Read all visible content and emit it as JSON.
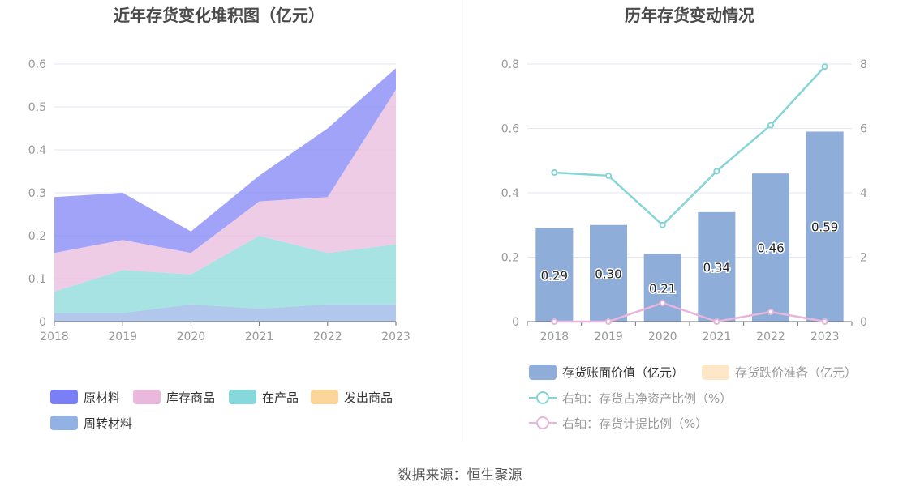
{
  "source_text": "数据来源：恒生聚源",
  "colors": {
    "raw_material": "#7b7ff5",
    "inventory_goods": "#e9b8dc",
    "wip": "#86d8da",
    "shipped_goods": "#fcd59a",
    "turnover_material": "#93b2e4",
    "bar": "#8eadd9",
    "impairment_bar": "#fde7c6",
    "ratio_line": "#86d4d8",
    "provision_line": "#e8b5dc",
    "grid": "#e4e7f2",
    "axis_text": "#999999",
    "title_text": "#4a4a4a"
  },
  "chart_data": [
    {
      "type": "area",
      "stacked": true,
      "title": "近年存货变化堆积图（亿元）",
      "x": [
        "2018",
        "2019",
        "2020",
        "2021",
        "2022",
        "2023"
      ],
      "yticks": [
        "0",
        "0.1",
        "0.2",
        "0.3",
        "0.4",
        "0.5",
        "0.6"
      ],
      "ylim": [
        0,
        0.6
      ],
      "grid": true,
      "legend_position": "bottom",
      "series": [
        {
          "name": "周转材料",
          "key": "turnover_material",
          "values": [
            0.02,
            0.02,
            0.04,
            0.03,
            0.04,
            0.04
          ]
        },
        {
          "name": "在产品",
          "key": "wip",
          "values": [
            0.05,
            0.1,
            0.07,
            0.17,
            0.12,
            0.14
          ]
        },
        {
          "name": "库存商品",
          "key": "inventory_goods",
          "values": [
            0.09,
            0.07,
            0.05,
            0.08,
            0.13,
            0.36
          ]
        },
        {
          "name": "原材料",
          "key": "raw_material",
          "values": [
            0.13,
            0.11,
            0.05,
            0.06,
            0.16,
            0.05
          ]
        },
        {
          "name": "发出商品",
          "key": "shipped_goods",
          "values": [
            0,
            0,
            0,
            0,
            0,
            0
          ]
        }
      ],
      "legend": [
        {
          "name": "原材料",
          "key": "raw_material"
        },
        {
          "name": "库存商品",
          "key": "inventory_goods"
        },
        {
          "name": "在产品",
          "key": "wip"
        },
        {
          "name": "发出商品",
          "key": "shipped_goods"
        },
        {
          "name": "周转材料",
          "key": "turnover_material"
        }
      ]
    },
    {
      "type": "bar",
      "title": "历年存货变动情况",
      "categories": [
        "2018",
        "2019",
        "2020",
        "2021",
        "2022",
        "2023"
      ],
      "ylim": [
        0,
        0.8
      ],
      "yticks_left": [
        "0",
        "0.2",
        "0.4",
        "0.6",
        "0.8"
      ],
      "y2lim": [
        0,
        8
      ],
      "yticks_right": [
        "0",
        "2",
        "4",
        "6",
        "8"
      ],
      "grid": true,
      "legend_position": "bottom",
      "series": [
        {
          "name": "存货账面价值（亿元）",
          "key": "bar",
          "type": "bar",
          "values": [
            0.29,
            0.3,
            0.21,
            0.34,
            0.46,
            0.59
          ],
          "labels": [
            "0.29",
            "0.30",
            "0.21",
            "0.34",
            "0.46",
            "0.59"
          ]
        },
        {
          "name": "存货跌价准备（亿元）",
          "key": "impairment_bar",
          "type": "bar",
          "values": [
            0,
            0,
            0,
            0,
            0,
            0
          ]
        },
        {
          "name": "右轴：存货占净资产比例（%）",
          "key": "ratio_line",
          "type": "line",
          "axis": "right",
          "values": [
            4.63,
            4.53,
            3.0,
            4.67,
            6.1,
            7.92
          ]
        },
        {
          "name": "右轴：存货计提比例（%）",
          "key": "provision_line",
          "type": "line",
          "axis": "right",
          "values": [
            0,
            0,
            0.58,
            0,
            0.3,
            0
          ]
        }
      ]
    }
  ]
}
